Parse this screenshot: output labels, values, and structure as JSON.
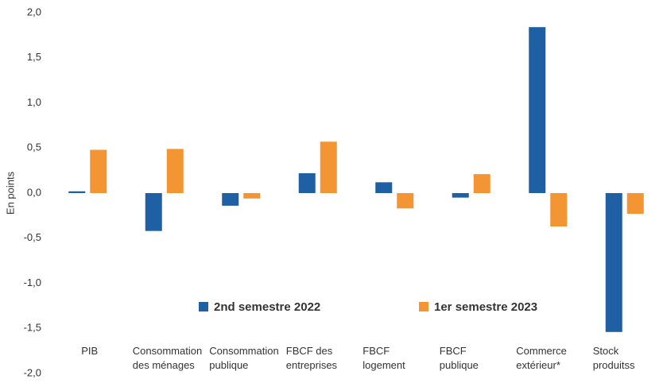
{
  "chart_data": {
    "type": "bar",
    "y_label": "En points",
    "categories": [
      [
        "PIB"
      ],
      [
        "Consommation",
        "des ménages"
      ],
      [
        "Consommation",
        "publique"
      ],
      [
        "FBCF des",
        "entreprises"
      ],
      [
        "FBCF",
        "logement"
      ],
      [
        "FBCF",
        "publique"
      ],
      [
        "Commerce",
        "extérieur*"
      ],
      [
        "Stock",
        "produitss"
      ]
    ],
    "series": [
      {
        "name": "2nd semestre 2022",
        "color": "#1f5fa3",
        "values": [
          0.02,
          -0.42,
          -0.14,
          0.22,
          0.12,
          -0.05,
          1.84,
          -1.54
        ]
      },
      {
        "name": "1er semestre 2023",
        "color": "#f39532",
        "values": [
          0.48,
          0.49,
          -0.06,
          0.57,
          -0.17,
          0.21,
          -0.37,
          -0.23
        ]
      }
    ],
    "ylim": [
      -2,
      2
    ],
    "yticks": [
      {
        "value": 2,
        "label": "2,0"
      },
      {
        "value": 1.5,
        "label": "1,5"
      },
      {
        "value": 1,
        "label": "1,0"
      },
      {
        "value": 0.5,
        "label": "0,5"
      },
      {
        "value": 0,
        "label": "0,0"
      },
      {
        "value": -0.5,
        "label": "-0,5"
      },
      {
        "value": -1,
        "label": "-1,0"
      },
      {
        "value": -1.5,
        "label": "-1,5"
      },
      {
        "value": -2,
        "label": "-2,0"
      }
    ],
    "grid": false
  }
}
